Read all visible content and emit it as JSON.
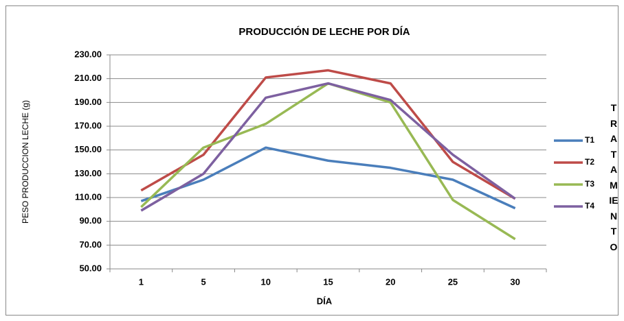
{
  "chart_data": {
    "type": "line",
    "title": "PRODUCCIÓN DE LECHE POR DÍA",
    "x_label": "DÍA",
    "y_label": "PESO PRODUCCION  LECHE (g)",
    "legend_title": "TRATAMIENTO",
    "categories": [
      "1",
      "5",
      "10",
      "15",
      "20",
      "25",
      "30"
    ],
    "series": [
      {
        "name": "T1",
        "color": "#4a7ebb",
        "values": [
          107,
          125,
          152,
          141,
          135,
          125,
          101
        ]
      },
      {
        "name": "T2",
        "color": "#be4b48",
        "values": [
          116,
          146,
          211,
          217,
          206,
          140,
          109
        ]
      },
      {
        "name": "T3",
        "color": "#98b954",
        "values": [
          102,
          152,
          172,
          206,
          190,
          108,
          75
        ]
      },
      {
        "name": "T4",
        "color": "#7d60a0",
        "values": [
          99,
          130,
          194,
          206,
          192,
          146,
          109
        ]
      }
    ],
    "ylim": [
      50,
      230
    ],
    "yticks": [
      {
        "value": 50,
        "label": "50.00"
      },
      {
        "value": 70,
        "label": "70.00"
      },
      {
        "value": 90,
        "label": "90.00"
      },
      {
        "value": 110,
        "label": "110.00"
      },
      {
        "value": 130,
        "label": "130.00"
      },
      {
        "value": 150,
        "label": "150.00"
      },
      {
        "value": 170,
        "label": "170.00"
      },
      {
        "value": 190,
        "label": "190.00"
      },
      {
        "value": 210,
        "label": "210.00"
      },
      {
        "value": 230,
        "label": "230.00"
      }
    ],
    "grid": true,
    "legend": "right"
  }
}
